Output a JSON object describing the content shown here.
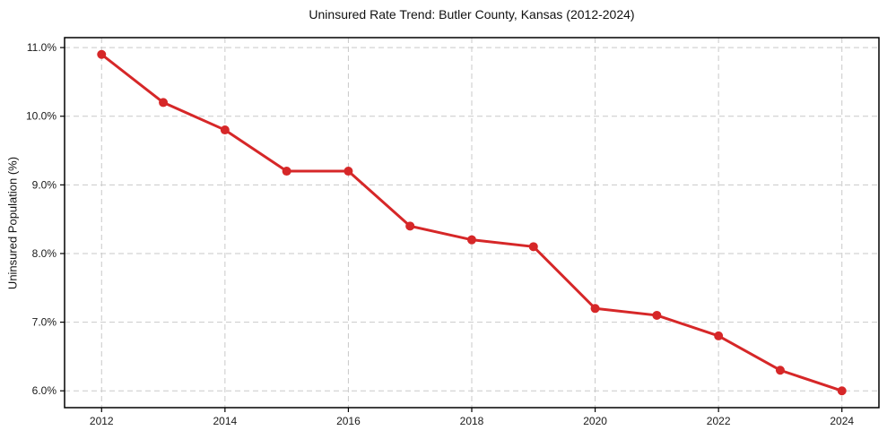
{
  "figure": {
    "background": "#ffffff",
    "plot_background": "#ffffff",
    "spine_color": "#000000",
    "grid_color": "#c9c9c9",
    "tick_color": "#000000",
    "text_color": "#1a1a1a"
  },
  "chart_data": {
    "type": "line",
    "title": "Uninsured Rate Trend: Butler County, Kansas (2012-2024)",
    "xlabel": "",
    "ylabel": "Uninsured Population (%)",
    "x": [
      2012,
      2013,
      2014,
      2015,
      2016,
      2017,
      2018,
      2019,
      2020,
      2021,
      2022,
      2023,
      2024
    ],
    "series": [
      {
        "name": "Uninsured rate",
        "color": "#d62728",
        "marker": "circle",
        "values": [
          10.9,
          10.2,
          9.8,
          9.2,
          9.2,
          8.4,
          8.2,
          8.1,
          7.2,
          7.1,
          6.8,
          6.3,
          6.0
        ]
      }
    ],
    "xlim": [
      2011.4,
      2024.6
    ],
    "ylim": [
      5.755,
      11.145
    ],
    "x_ticks": [
      2012,
      2014,
      2016,
      2018,
      2020,
      2022,
      2024
    ],
    "x_tick_labels": [
      "2012",
      "2014",
      "2016",
      "2018",
      "2020",
      "2022",
      "2024"
    ],
    "y_ticks": [
      6.0,
      7.0,
      8.0,
      9.0,
      10.0,
      11.0
    ],
    "y_tick_labels": [
      "6.0%",
      "7.0%",
      "8.0%",
      "9.0%",
      "10.0%",
      "11.0%"
    ],
    "grid": true,
    "grid_style": "dashed",
    "legend": null
  }
}
